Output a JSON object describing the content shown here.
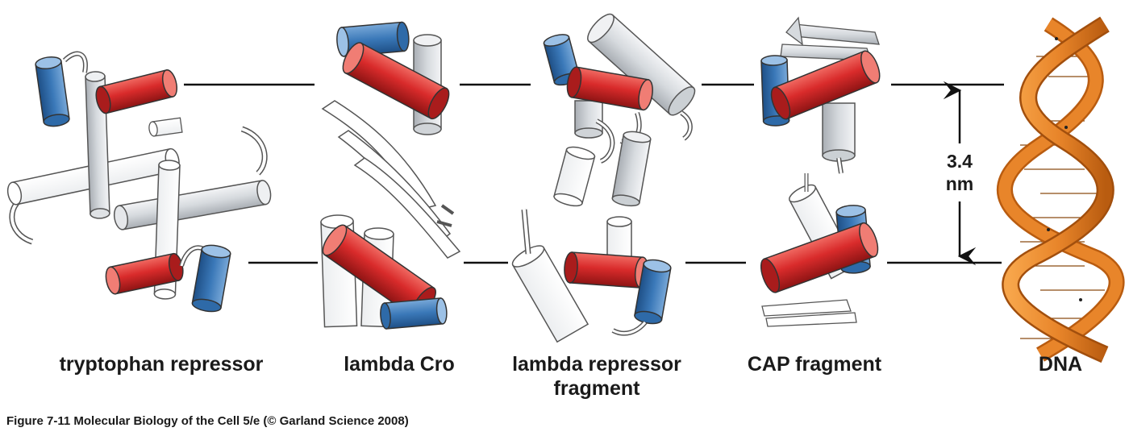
{
  "labels": {
    "trp": "tryptophan repressor",
    "cro": "lambda Cro",
    "lambda_rep_1": "lambda repressor",
    "lambda_rep_2": "fragment",
    "cap": "CAP fragment",
    "dna": "DNA"
  },
  "measurement": {
    "value": "3.4",
    "unit": "nm"
  },
  "caption": "Figure 7-11  Molecular Biology of the Cell 5/e (© Garland Science 2008)",
  "colors": {
    "recognition_helix": "#d92b2b",
    "second_helix": "#3a78b8",
    "scaffold_helix": "#d9dde2",
    "outline": "#4a4a4a",
    "dna_strand": "#e8852a",
    "dna_strand_dark": "#b95c10"
  }
}
